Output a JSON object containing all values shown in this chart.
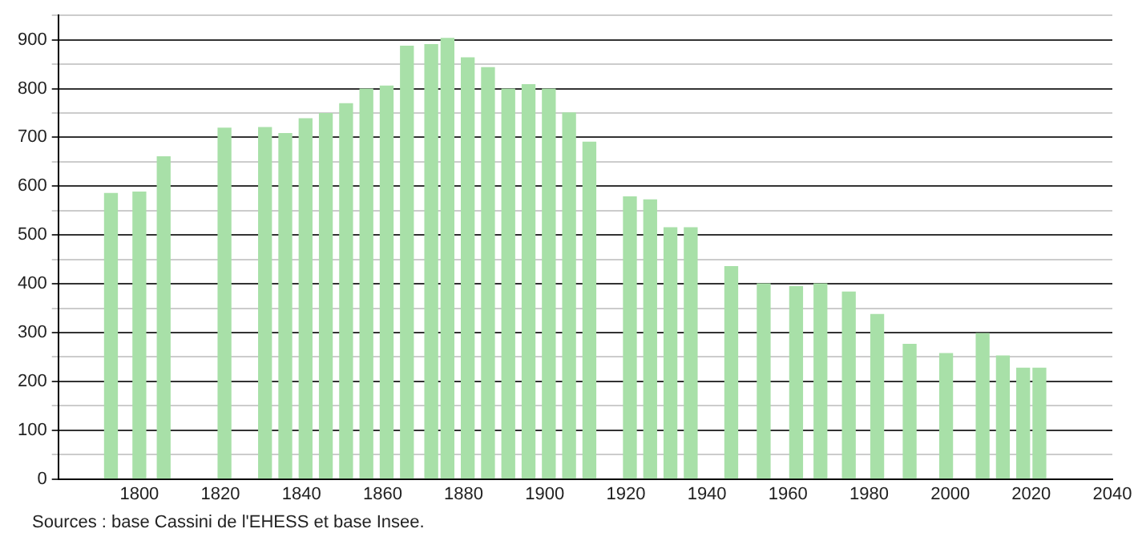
{
  "chart_data": {
    "type": "bar",
    "x": [
      1793,
      1800,
      1806,
      1821,
      1831,
      1836,
      1841,
      1846,
      1851,
      1856,
      1861,
      1866,
      1872,
      1876,
      1881,
      1886,
      1891,
      1896,
      1901,
      1906,
      1911,
      1921,
      1926,
      1931,
      1936,
      1946,
      1954,
      1962,
      1968,
      1975,
      1982,
      1990,
      1999,
      2008,
      2013,
      2018,
      2022
    ],
    "values": [
      585,
      588,
      660,
      719,
      720,
      708,
      738,
      749,
      769,
      799,
      805,
      887,
      890,
      903,
      863,
      843,
      799,
      808,
      799,
      750,
      690,
      578,
      572,
      515,
      515,
      435,
      400,
      394,
      400,
      383,
      337,
      276,
      257,
      298,
      252,
      227,
      227
    ],
    "color": "#a8e0a8",
    "xlim": [
      1780,
      2040
    ],
    "xticks": [
      1800,
      1820,
      1840,
      1860,
      1880,
      1900,
      1920,
      1940,
      1960,
      1980,
      2000,
      2020,
      2040
    ],
    "ylim": [
      0,
      950
    ],
    "yticks": [
      0,
      {
        "value": 50,
        "label": null
      },
      100,
      {
        "value": 150,
        "label": null
      },
      200,
      {
        "value": 250,
        "label": null
      },
      300,
      {
        "value": 350,
        "label": null
      },
      400,
      {
        "value": 450,
        "label": null
      },
      500,
      {
        "value": 550,
        "label": null
      },
      600,
      {
        "value": 650,
        "label": null
      },
      700,
      {
        "value": 750,
        "label": null
      },
      800,
      {
        "value": 850,
        "label": null
      },
      900,
      {
        "value": 950,
        "label": null
      }
    ],
    "grid": "y",
    "legend": false,
    "annotations": [
      "Sources : base Cassini de l'EHESS et base Insee."
    ]
  }
}
